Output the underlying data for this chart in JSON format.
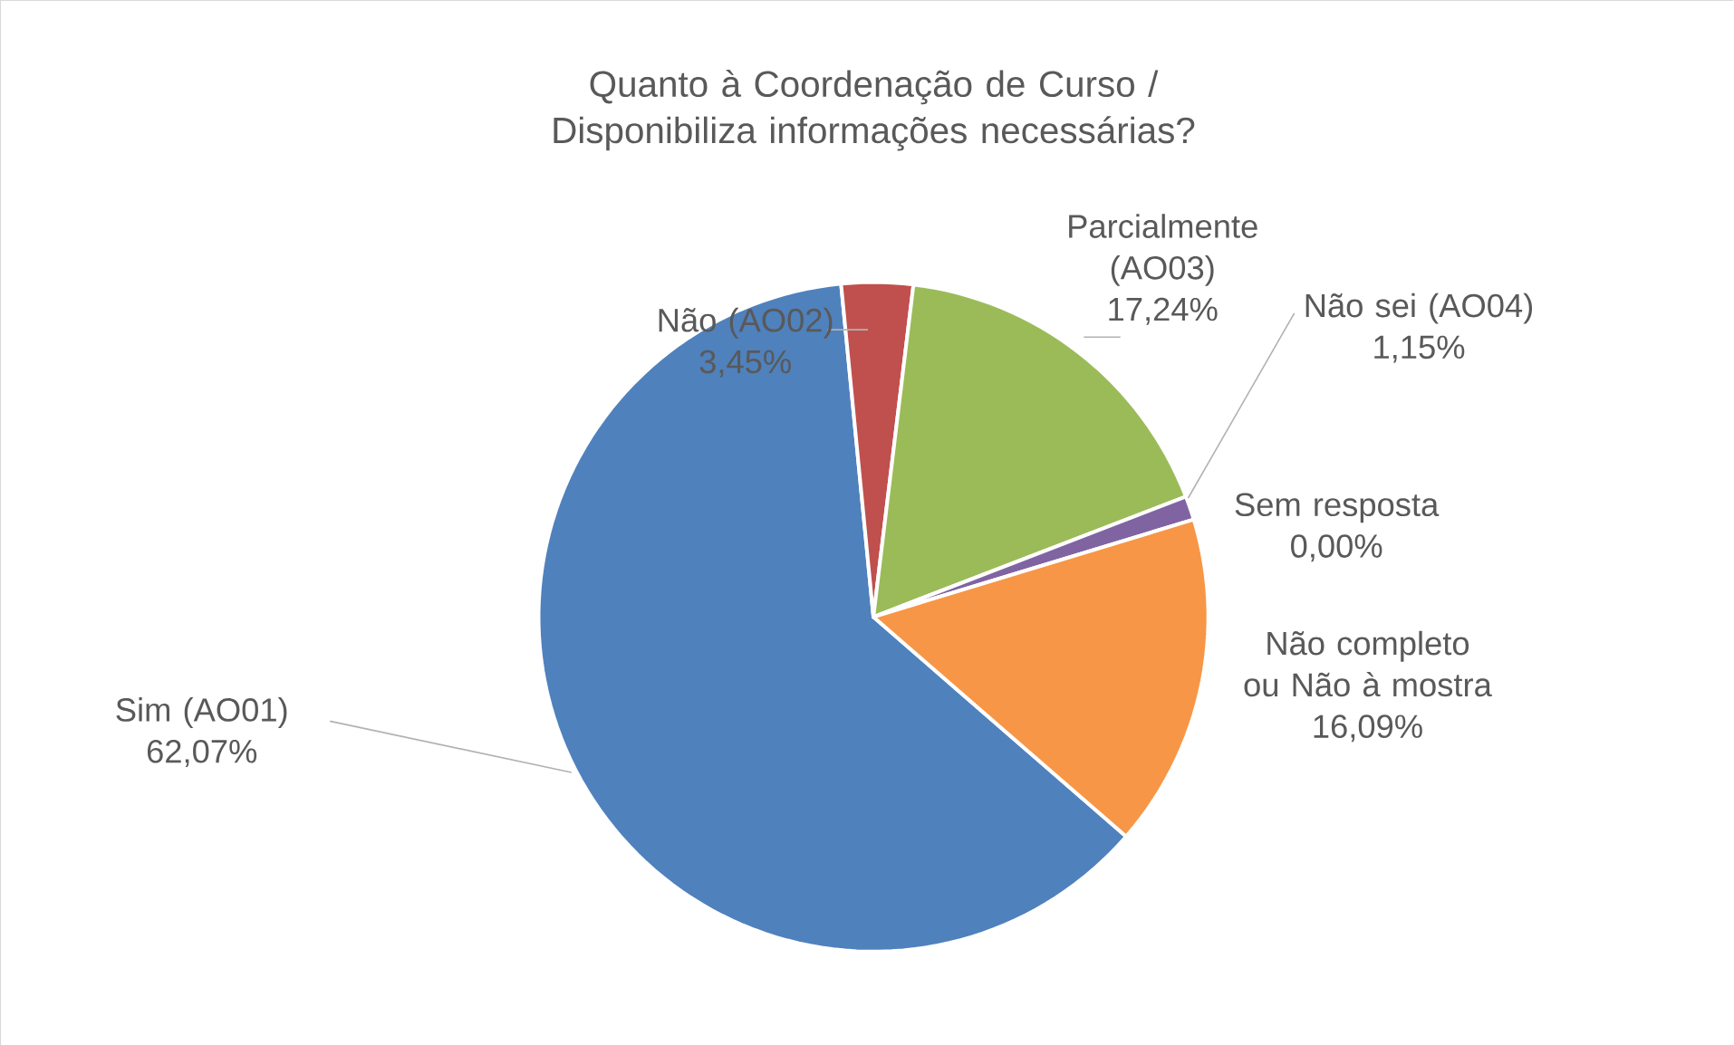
{
  "chart_data": {
    "type": "pie",
    "title": "Quanto à Coordenação de Curso / Disponibiliza informações necessárias?",
    "categories": [
      "Sim (AO01)",
      "Não (AO02)",
      "Parcialmente (AO03)",
      "Não sei (AO04)",
      "Sem resposta",
      "Não completo ou Não à mostra"
    ],
    "values": [
      62.07,
      3.45,
      17.24,
      1.15,
      0.0,
      16.09
    ],
    "value_labels": [
      "62,07%",
      "3,45%",
      "17,24%",
      "1,15%",
      "0,00%",
      "16,09%"
    ],
    "colors": [
      "#4f81bd",
      "#c0504d",
      "#9bbb59",
      "#8064a2",
      "#4bacc6",
      "#f79646"
    ]
  }
}
